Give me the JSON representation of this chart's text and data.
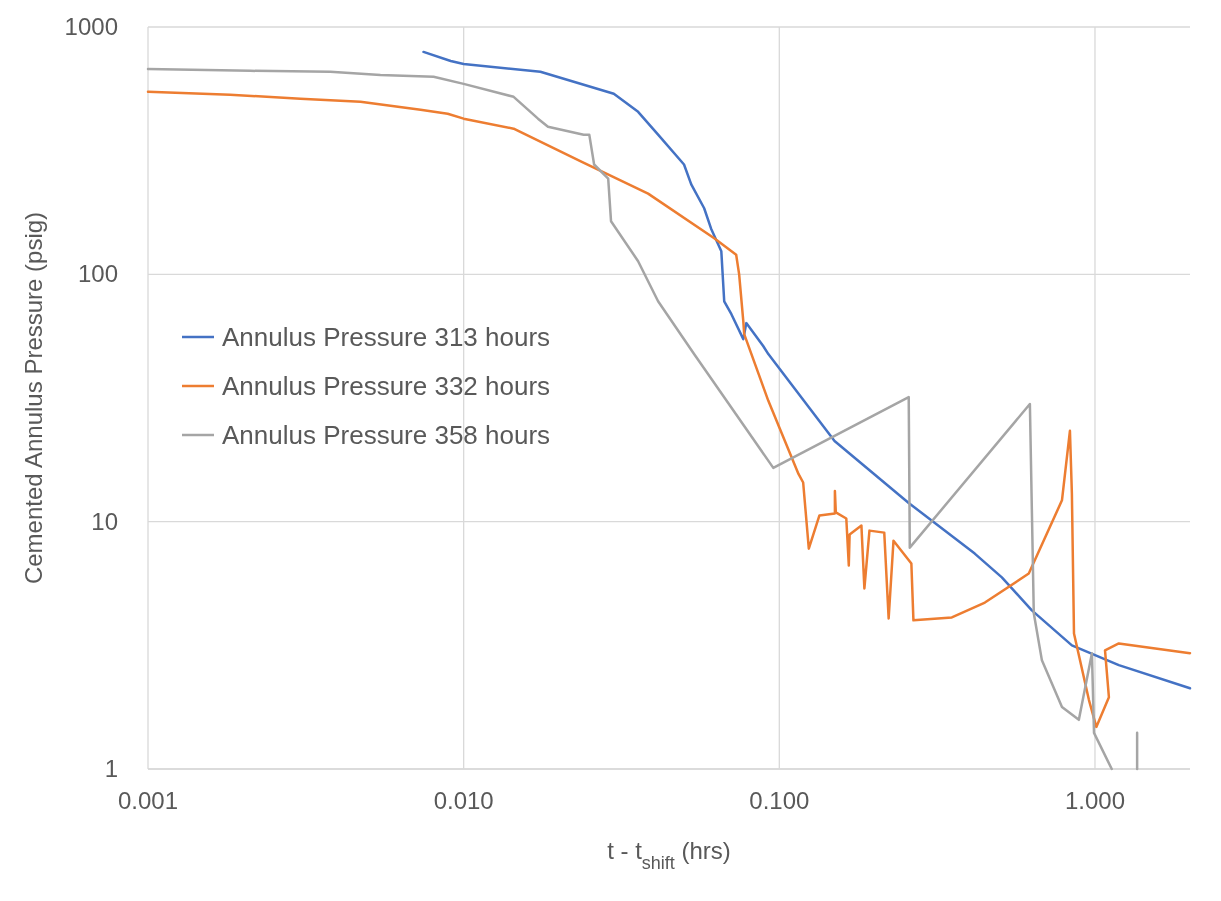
{
  "chart_data": {
    "type": "line",
    "xlabel": "t - t$_{shift}$ (hrs)",
    "ylabel": "Cemented Annulus Pressure (psig)",
    "log": "xy",
    "grid": true,
    "legend": "left",
    "line_style": "solid",
    "xlim": [
      0.001,
      2
    ],
    "xticks": [
      {
        "value": 0.001,
        "label": "0.001"
      },
      {
        "value": 0.01,
        "label": "0.010"
      },
      {
        "value": 0.1,
        "label": "0.100"
      },
      {
        "value": 1,
        "label": "1.000"
      }
    ],
    "ylim": [
      1,
      1000
    ],
    "yticks": [
      1,
      10,
      100,
      1000
    ],
    "series": [
      {
        "name": "Annulus Pressure 313 hours",
        "color": "#4472c4",
        "x": [
          0.00746,
          0.0091,
          0.01,
          0.0175,
          0.0299,
          0.0357,
          0.0413,
          0.0499,
          0.0526,
          0.0578,
          0.0608,
          0.0655,
          0.0669,
          0.0705,
          0.0769,
          0.0786,
          0.0889,
          0.0923,
          0.1496,
          0.257,
          0.416,
          0.507,
          0.631,
          0.845,
          1.19,
          2
        ],
        "values": [
          793,
          729,
          709,
          659,
          537,
          454,
          367,
          278,
          231,
          185,
          153,
          124,
          77.8,
          69,
          54.7,
          63.5,
          51.3,
          47.6,
          21.2,
          11.9,
          7.43,
          5.95,
          4.38,
          3.16,
          2.63,
          2.12
        ]
      },
      {
        "name": "Annulus Pressure 332 hours",
        "color": "#ed7d31",
        "x": [
          0.001,
          0.00182,
          0.00304,
          0.00471,
          0.0073,
          0.0089,
          0.01,
          0.0144,
          0.0235,
          0.0384,
          0.0622,
          0.073,
          0.0746,
          0.0769,
          0.0774,
          0.0923,
          0.115,
          0.119,
          0.124,
          0.134,
          0.15,
          0.15,
          0.151,
          0.163,
          0.166,
          0.167,
          0.182,
          0.186,
          0.193,
          0.215,
          0.222,
          0.23,
          0.262,
          0.266,
          0.352,
          0.448,
          0.617,
          0.786,
          0.833,
          0.845,
          0.858,
          0.957,
          1.01,
          1.107,
          1.076,
          1.19,
          2
        ],
        "values": [
          547,
          532,
          513,
          499,
          463,
          446,
          426,
          388,
          286,
          212,
          140,
          120,
          100,
          64.6,
          57.3,
          30.8,
          15.6,
          14.4,
          7.78,
          10.6,
          10.8,
          13.3,
          10.9,
          10.3,
          6.65,
          8.87,
          9.64,
          5.37,
          9.2,
          9.03,
          4.06,
          8.38,
          6.77,
          3.99,
          4.1,
          4.71,
          6.17,
          12.2,
          23.3,
          13,
          3.53,
          1.9,
          1.48,
          1.95,
          3.02,
          3.22,
          2.94
        ]
      },
      {
        "name": "Annulus Pressure 358 hours",
        "color": "#a5a5a5",
        "x": [
          0.001,
          0.00211,
          0.00378,
          0.00545,
          0.00803,
          0.01,
          0.0144,
          0.0172,
          0.0185,
          0.024,
          0.025,
          0.0259,
          0.0287,
          0.0293,
          0.0357,
          0.0413,
          0.0537,
          0.0565,
          0.0957,
          0.257,
          0.259,
          0.622,
          0.64,
          0.679,
          0.786,
          0.889,
          0.978,
          0.993,
          1.13,
          null,
          1.36,
          1.36
        ],
        "values": [
          677,
          665,
          659,
          640,
          629,
          589,
          522,
          426,
          395,
          367,
          367,
          278,
          244,
          164,
          113,
          77.8,
          47.6,
          43.4,
          16.5,
          31.9,
          7.85,
          29.9,
          4.26,
          2.75,
          1.78,
          1.58,
          2.94,
          1.4,
          1,
          null,
          1.4,
          1
        ]
      }
    ]
  }
}
